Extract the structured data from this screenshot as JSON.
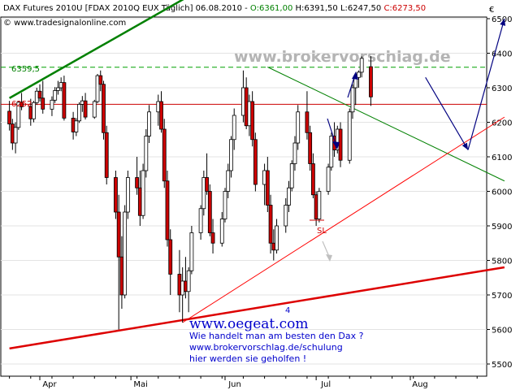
{
  "header": {
    "instrument": "DAX Futures 2010U [FDAX 2010Q EUX  Täglich] 06.08.2010 - ",
    "open": "O:6361,00",
    "high": "H:6391,50",
    "low": "L:6247,50",
    "close": "C:6273,50",
    "source": "© www.tradesignalonline.com",
    "currency_symbol": "€",
    "colors": {
      "open": "#008000",
      "high": "#000000",
      "low": "#000000",
      "close": "#cc0000"
    }
  },
  "watermark": "www.brokervorschlag.de",
  "annotations": {
    "level_label": "6359,5",
    "level_label_red": "6252",
    "sl_label": "SL",
    "small_number": "4",
    "ad_url": "www.oegeat.com",
    "ad_line1": "Wie handelt man am besten den Dax ?",
    "ad_line2": "www.brokervorschlag.de/schulung",
    "ad_line3": "hier werden sie geholfen !"
  },
  "chart_data": {
    "type": "candlestick",
    "y_ticks": [
      5500,
      5600,
      5700,
      5800,
      5900,
      6000,
      6100,
      6200,
      6300,
      6400,
      6500
    ],
    "ylim": [
      5460,
      6600
    ],
    "x_labels": [
      "Apr",
      "Mai",
      "Jun",
      "Jul",
      "Aug"
    ],
    "lines": [
      {
        "name": "upper-trend-green",
        "color": "#008000",
        "from": [
          "2010-03-22",
          6270
        ],
        "to": [
          "2010-05-27",
          6600
        ]
      },
      {
        "name": "resistance-dashed",
        "color": "#00a000",
        "value": 6359.5,
        "dashed": true
      },
      {
        "name": "horizontal-red",
        "color": "#cc0000",
        "value": 6252
      },
      {
        "name": "green-downtrend",
        "color": "#008000",
        "from": [
          "2010-06-15",
          6360
        ],
        "to": [
          "2010-09-01",
          6030
        ]
      },
      {
        "name": "red-uptrend-thin",
        "color": "#ff0000",
        "from": [
          "2010-05-18",
          5620
        ],
        "to": [
          "2010-09-01",
          6215
        ]
      },
      {
        "name": "red-uptrend-thick",
        "color": "#dd0000",
        "from": [
          "2010-03-22",
          5545
        ],
        "to": [
          "2010-09-01",
          5780
        ]
      }
    ],
    "forecast_arrows": [
      {
        "from": [
          "2010-08-06",
          6330
        ],
        "to": [
          "2010-08-20",
          6120
        ]
      },
      {
        "from": [
          "2010-08-20",
          6120
        ],
        "to": [
          "2010-09-01",
          6500
        ]
      }
    ],
    "candles": [
      [
        6232,
        6262,
        6176,
        6195
      ],
      [
        6195,
        6210,
        6120,
        6140
      ],
      [
        6140,
        6200,
        6110,
        6185
      ],
      [
        6185,
        6262,
        6178,
        6258
      ],
      [
        6258,
        6285,
        6235,
        6245
      ],
      [
        6245,
        6268,
        6190,
        6210
      ],
      [
        6210,
        6262,
        6200,
        6257
      ],
      [
        6257,
        6300,
        6250,
        6290
      ],
      [
        6290,
        6310,
        6260,
        6270
      ],
      [
        6270,
        6320,
        6225,
        6238
      ],
      [
        6238,
        6275,
        6218,
        6264
      ],
      [
        6264,
        6302,
        6256,
        6292
      ],
      [
        6292,
        6320,
        6280,
        6300
      ],
      [
        6300,
        6330,
        6290,
        6315
      ],
      [
        6315,
        6335,
        6205,
        6212
      ],
      [
        6212,
        6230,
        6150,
        6172
      ],
      [
        6172,
        6212,
        6160,
        6204
      ],
      [
        6204,
        6258,
        6198,
        6252
      ],
      [
        6252,
        6276,
        6230,
        6262
      ],
      [
        6262,
        6285,
        6208,
        6215
      ],
      [
        6215,
        6265,
        6210,
        6260
      ],
      [
        6260,
        6340,
        6255,
        6335
      ],
      [
        6335,
        6350,
        6290,
        6310
      ],
      [
        6310,
        6320,
        6150,
        6170
      ],
      [
        6170,
        6190,
        6020,
        6040
      ],
      [
        6040,
        6060,
        5920,
        5940
      ],
      [
        5940,
        5990,
        5600,
        5810
      ],
      [
        5810,
        5870,
        5660,
        5700
      ],
      [
        5700,
        5960,
        5690,
        5940
      ],
      [
        5940,
        6060,
        5920,
        6040
      ],
      [
        6040,
        6100,
        5990,
        6010
      ],
      [
        6010,
        6060,
        5900,
        5930
      ],
      [
        5930,
        6080,
        5920,
        6060
      ],
      [
        6060,
        6180,
        6040,
        6160
      ],
      [
        6160,
        6250,
        6140,
        6230
      ],
      [
        6230,
        6280,
        6190,
        6260
      ],
      [
        6260,
        6290,
        6170,
        6180
      ],
      [
        6180,
        6210,
        6010,
        6030
      ],
      [
        6030,
        6060,
        5840,
        5860
      ],
      [
        5860,
        5890,
        5700,
        5760
      ],
      [
        5760,
        5830,
        5650,
        5700
      ],
      [
        5700,
        5780,
        5620,
        5740
      ],
      [
        5740,
        5810,
        5690,
        5710
      ],
      [
        5710,
        5780,
        5650,
        5770
      ],
      [
        5770,
        5900,
        5760,
        5880
      ],
      [
        5880,
        5960,
        5860,
        5950
      ],
      [
        5950,
        6060,
        5930,
        6040
      ],
      [
        6040,
        6110,
        5990,
        6000
      ],
      [
        6000,
        6020,
        5870,
        5880
      ],
      [
        5880,
        5920,
        5820,
        5850
      ],
      [
        5850,
        5940,
        5840,
        5920
      ],
      [
        5920,
        6010,
        5910,
        6000
      ],
      [
        6000,
        6080,
        5980,
        6060
      ],
      [
        6060,
        6160,
        6040,
        6150
      ],
      [
        6150,
        6240,
        6120,
        6220
      ],
      [
        6220,
        6350,
        6200,
        6300
      ],
      [
        6300,
        6330,
        6180,
        6190
      ],
      [
        6190,
        6280,
        6160,
        6260
      ],
      [
        6260,
        6290,
        6130,
        6150
      ],
      [
        6150,
        6170,
        6000,
        6020
      ],
      [
        6020,
        6080,
        5960,
        6060
      ],
      [
        6060,
        6100,
        5940,
        5960
      ],
      [
        5960,
        5990,
        5820,
        5850
      ],
      [
        5850,
        5890,
        5800,
        5830
      ],
      [
        5830,
        5920,
        5820,
        5900
      ],
      [
        5900,
        5980,
        5880,
        5960
      ],
      [
        5960,
        6030,
        5940,
        6010
      ],
      [
        6010,
        6090,
        6000,
        6080
      ],
      [
        6080,
        6160,
        6060,
        6140
      ],
      [
        6140,
        6250,
        6120,
        6230
      ],
      [
        6230,
        6290,
        6150,
        6170
      ],
      [
        6170,
        6190,
        6060,
        6080
      ],
      [
        6080,
        6110,
        5980,
        5990
      ],
      [
        5990,
        6000,
        5900,
        5920
      ],
      [
        5920,
        6010,
        5910,
        6000
      ],
      [
        6000,
        6080,
        5990,
        6070
      ],
      [
        6070,
        6170,
        6060,
        6160
      ],
      [
        6160,
        6200,
        6100,
        6120
      ],
      [
        6120,
        6190,
        6110,
        6180
      ],
      [
        6180,
        6200,
        6070,
        6090
      ],
      [
        6090,
        6240,
        6080,
        6230
      ],
      [
        6230,
        6310,
        6210,
        6300
      ],
      [
        6300,
        6340,
        6250,
        6330
      ],
      [
        6330,
        6350,
        6300,
        6345
      ],
      [
        6345,
        6391,
        6330,
        6385
      ],
      [
        6361,
        6391.5,
        6247.5,
        6273.5
      ]
    ]
  }
}
